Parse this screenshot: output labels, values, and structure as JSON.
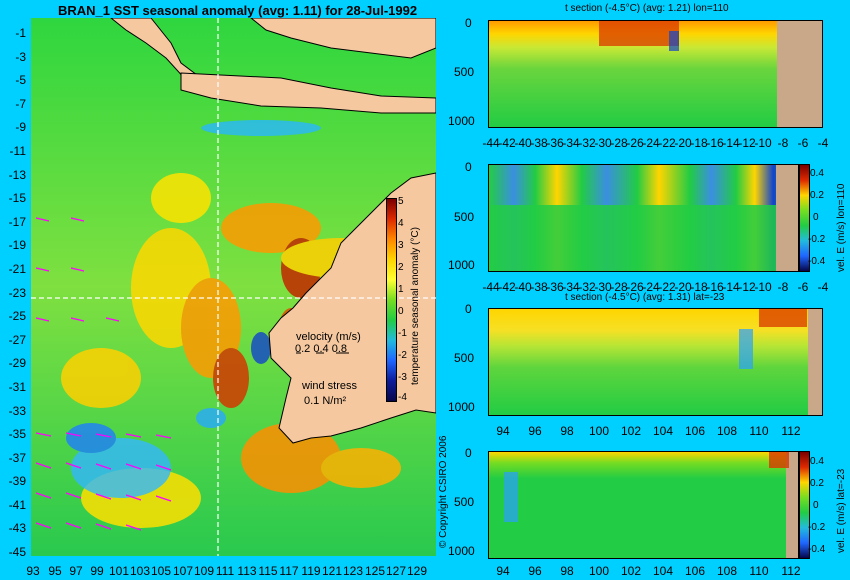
{
  "main_map": {
    "title": "BRAN_1 SST seasonal anomaly (avg: 1.11) for 28-Jul-1992",
    "lat_ticks": [
      "-1",
      "-3",
      "-5",
      "-7",
      "-9",
      "-11",
      "-13",
      "-15",
      "-17",
      "-19",
      "-21",
      "-23",
      "-25",
      "-27",
      "-29",
      "-31",
      "-33",
      "-35",
      "-37",
      "-39",
      "-41",
      "-43",
      "-45"
    ],
    "lon_ticks": [
      "93",
      "95",
      "97",
      "99",
      "101",
      "103",
      "105",
      "107",
      "109",
      "111",
      "113",
      "115",
      "117",
      "119",
      "121",
      "123",
      "125",
      "127",
      "129"
    ],
    "legend": {
      "velocity_label": "velocity (m/s)",
      "velocity_values": "0.2 0.4 0.8",
      "wind_label": "wind stress",
      "wind_value": "0.1 N/m²"
    },
    "colorbar": {
      "label": "temperature seasonal anomaly (°C)",
      "ticks": [
        "5",
        "4",
        "3",
        "2",
        "1",
        "0",
        "-1",
        "-2",
        "-3",
        "-4"
      ]
    },
    "copyright": "© Copyright CSIRO 2006"
  },
  "panels": [
    {
      "title": "t section (-4.5°C) (avg: 1.21) lon=110",
      "y_ticks": [
        "0",
        "500",
        "1000"
      ],
      "x_ticks": [
        "-44",
        "-42",
        "-40",
        "-38",
        "-36",
        "-34",
        "-32",
        "-30",
        "-28",
        "-26",
        "-24",
        "-22",
        "-20",
        "-18",
        "-16",
        "-14",
        "-12",
        "-10",
        "-8",
        "-6",
        "-4"
      ]
    },
    {
      "title": "",
      "y_ticks": [
        "0",
        "500",
        "1000"
      ],
      "x_ticks": [
        "-44",
        "-42",
        "-40",
        "-38",
        "-36",
        "-34",
        "-32",
        "-30",
        "-28",
        "-26",
        "-24",
        "-22",
        "-20",
        "-18",
        "-16",
        "-14",
        "-12",
        "-10",
        "-8",
        "-6",
        "-4"
      ],
      "colorbar_label": "vel. E (m/s) lon=110",
      "colorbar_ticks": [
        "0.4",
        "0.2",
        "0",
        "-0.2",
        "-0.4"
      ]
    },
    {
      "title": "t section (-4.5°C) (avg: 1.31) lat=-23",
      "y_ticks": [
        "0",
        "500",
        "1000"
      ],
      "x_ticks": [
        "94",
        "96",
        "98",
        "100",
        "102",
        "104",
        "106",
        "108",
        "110",
        "112"
      ]
    },
    {
      "title": "",
      "y_ticks": [
        "0",
        "500",
        "1000"
      ],
      "x_ticks": [
        "94",
        "96",
        "98",
        "100",
        "102",
        "104",
        "106",
        "108",
        "110",
        "112"
      ],
      "colorbar_label": "vel. E (m/s) lat=-23",
      "colorbar_ticks": [
        "0.4",
        "0.2",
        "0",
        "-0.2",
        "-0.4"
      ]
    }
  ],
  "colors": {
    "background": "#00d0ff",
    "land": "#f5c8a0",
    "section_land": "#c8a888",
    "field_base": "#22cc44",
    "warm": "#ffdd00",
    "hot": "#dd3300",
    "cold": "#1144cc",
    "white_guides": "#ffffff",
    "magenta_arrows": "#ff00ff"
  }
}
